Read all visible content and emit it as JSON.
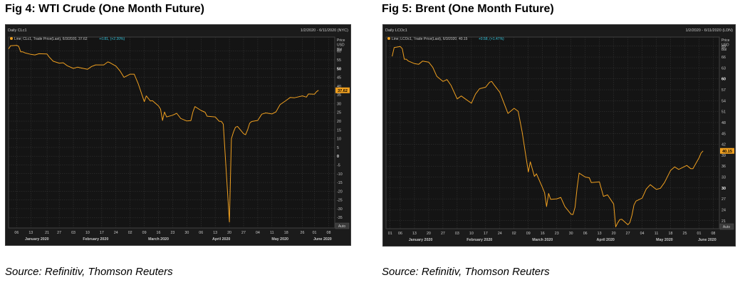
{
  "colors": {
    "background": "#1b1b1b",
    "plot_bg": "#141414",
    "grid": "#3a3a3a",
    "line": "#f0a020",
    "text": "#c8c8c8",
    "cyan": "#36c8e0",
    "badge": "#f0a020"
  },
  "chart_data": [
    {
      "type": "line",
      "title": "Fig 4: WTI Crude (One Month Future)",
      "source": "Source: Refinitiv, Thomson Reuters",
      "panel_label": "Daily CLc1",
      "date_range": "1/2/2020 - 6/11/2020 (NYC)",
      "legend": "Line; CLc1, Trade Price(Last), 6/3/2020, 37.62",
      "legend_change": "+0.81, (+2.20%)",
      "axis_title": [
        "Price",
        "USD",
        "Bbl"
      ],
      "last_value_label": "37.62",
      "auto_label": "Auto",
      "ylim": [
        -41,
        68
      ],
      "y_ticks": [
        -35,
        -30,
        -25,
        -20,
        -15,
        -10,
        -5,
        0,
        5,
        10,
        15,
        20,
        25,
        30,
        35,
        40,
        45,
        50,
        55,
        60
      ],
      "y_tick_labels": [
        "-35",
        "-30",
        "-25",
        "-20",
        "-15",
        "-10",
        "-5",
        "0",
        "5",
        "10",
        "15",
        "20",
        "25",
        "30",
        "35",
        "40",
        "45",
        "50",
        "55",
        "60"
      ],
      "bold_y_ticks": [
        0,
        50
      ],
      "day_ticks": [
        {
          "label": "06",
          "x": "2020-01-06"
        },
        {
          "label": "13",
          "x": "2020-01-13"
        },
        {
          "label": "21",
          "x": "2020-01-21"
        },
        {
          "label": "27",
          "x": "2020-01-27"
        },
        {
          "label": "03",
          "x": "2020-02-03"
        },
        {
          "label": "10",
          "x": "2020-02-10"
        },
        {
          "label": "17",
          "x": "2020-02-17"
        },
        {
          "label": "24",
          "x": "2020-02-24"
        },
        {
          "label": "02",
          "x": "2020-03-02"
        },
        {
          "label": "09",
          "x": "2020-03-09"
        },
        {
          "label": "16",
          "x": "2020-03-16"
        },
        {
          "label": "23",
          "x": "2020-03-23"
        },
        {
          "label": "30",
          "x": "2020-03-30"
        },
        {
          "label": "06",
          "x": "2020-04-06"
        },
        {
          "label": "13",
          "x": "2020-04-13"
        },
        {
          "label": "20",
          "x": "2020-04-20"
        },
        {
          "label": "27",
          "x": "2020-04-27"
        },
        {
          "label": "04",
          "x": "2020-05-04"
        },
        {
          "label": "11",
          "x": "2020-05-11"
        },
        {
          "label": "18",
          "x": "2020-05-18"
        },
        {
          "label": "26",
          "x": "2020-05-26"
        },
        {
          "label": "01",
          "x": "2020-06-01"
        },
        {
          "label": "08",
          "x": "2020-06-08"
        }
      ],
      "month_labels": [
        {
          "label": "January 2020",
          "x": "2020-01-16"
        },
        {
          "label": "February 2020",
          "x": "2020-02-14"
        },
        {
          "label": "March 2020",
          "x": "2020-03-16"
        },
        {
          "label": "April 2020",
          "x": "2020-04-16"
        },
        {
          "label": "May 2020",
          "x": "2020-05-15"
        },
        {
          "label": "June 2020",
          "x": "2020-06-05"
        }
      ],
      "x_start": "2020-01-02",
      "x_end": "2020-06-11",
      "series": [
        {
          "x": [
            "2020-01-02",
            "2020-01-03",
            "2020-01-06",
            "2020-01-07",
            "2020-01-08",
            "2020-01-09",
            "2020-01-10",
            "2020-01-13",
            "2020-01-15",
            "2020-01-17",
            "2020-01-21",
            "2020-01-22",
            "2020-01-24",
            "2020-01-27",
            "2020-01-29",
            "2020-01-31",
            "2020-02-03",
            "2020-02-05",
            "2020-02-07",
            "2020-02-10",
            "2020-02-12",
            "2020-02-14",
            "2020-02-18",
            "2020-02-20",
            "2020-02-21",
            "2020-02-24",
            "2020-02-26",
            "2020-02-28",
            "2020-03-02",
            "2020-03-04",
            "2020-03-06",
            "2020-03-09",
            "2020-03-10",
            "2020-03-12",
            "2020-03-13",
            "2020-03-16",
            "2020-03-17",
            "2020-03-18",
            "2020-03-19",
            "2020-03-20",
            "2020-03-23",
            "2020-03-25",
            "2020-03-27",
            "2020-03-30",
            "2020-04-01",
            "2020-04-02",
            "2020-04-03",
            "2020-04-06",
            "2020-04-08",
            "2020-04-09",
            "2020-04-13",
            "2020-04-15",
            "2020-04-16",
            "2020-04-17",
            "2020-04-20",
            "2020-04-21",
            "2020-04-22",
            "2020-04-23",
            "2020-04-24",
            "2020-04-27",
            "2020-04-28",
            "2020-04-29",
            "2020-04-30",
            "2020-05-01",
            "2020-05-04",
            "2020-05-06",
            "2020-05-08",
            "2020-05-11",
            "2020-05-13",
            "2020-05-15",
            "2020-05-18",
            "2020-05-20",
            "2020-05-22",
            "2020-05-26",
            "2020-05-28",
            "2020-05-29",
            "2020-06-01",
            "2020-06-02",
            "2020-06-03"
          ],
          "y": [
            61.2,
            63.0,
            63.3,
            62.7,
            59.6,
            59.6,
            59.0,
            58.1,
            57.8,
            58.5,
            58.3,
            56.7,
            54.2,
            53.1,
            53.3,
            51.6,
            50.1,
            50.8,
            50.3,
            49.6,
            51.2,
            52.1,
            52.1,
            53.8,
            53.4,
            51.4,
            48.7,
            45.0,
            46.8,
            46.8,
            41.3,
            31.1,
            34.4,
            31.5,
            31.7,
            28.7,
            26.9,
            20.4,
            25.2,
            22.4,
            23.4,
            24.5,
            21.5,
            20.1,
            20.3,
            25.3,
            28.3,
            26.1,
            25.1,
            22.8,
            22.4,
            19.9,
            19.9,
            18.3,
            -37.6,
            10.0,
            13.8,
            16.5,
            17.0,
            12.8,
            12.3,
            15.1,
            18.8,
            19.8,
            20.4,
            24.0,
            24.7,
            24.1,
            25.3,
            29.4,
            31.8,
            33.5,
            33.3,
            34.4,
            33.7,
            35.5,
            35.4,
            36.8,
            37.6
          ]
        }
      ]
    },
    {
      "type": "line",
      "title": "Fig 5: Brent (One Month Future)",
      "source": "Source: Refinitiv, Thomson Reuters",
      "panel_label": "Daily LCOc1",
      "date_range": "1/2/2020 - 6/11/2020 (LDN)",
      "legend": "Line; LCOc1, Trade Price(Last), 6/3/2020, 40.15",
      "legend_change": "+0.58, (+1.47%)",
      "axis_title": [
        "Price",
        "USD",
        "Bbl"
      ],
      "last_value_label": "40.15",
      "auto_label": "Auto",
      "ylim": [
        18.8,
        71.5
      ],
      "y_ticks": [
        21,
        24,
        27,
        30,
        33,
        36,
        39,
        42,
        45,
        48,
        51,
        54,
        57,
        60,
        63,
        66,
        69
      ],
      "y_tick_labels": [
        "21",
        "24",
        "27",
        "30",
        "33",
        "36",
        "39",
        "42",
        "45",
        "48",
        "51",
        "54",
        "57",
        "60",
        "63",
        "66",
        "69"
      ],
      "bold_y_ticks": [
        30,
        60
      ],
      "day_ticks": [
        {
          "label": "01",
          "x": "2020-01-01"
        },
        {
          "label": "06",
          "x": "2020-01-06"
        },
        {
          "label": "13",
          "x": "2020-01-13"
        },
        {
          "label": "20",
          "x": "2020-01-20"
        },
        {
          "label": "27",
          "x": "2020-01-27"
        },
        {
          "label": "03",
          "x": "2020-02-03"
        },
        {
          "label": "10",
          "x": "2020-02-10"
        },
        {
          "label": "17",
          "x": "2020-02-17"
        },
        {
          "label": "24",
          "x": "2020-02-24"
        },
        {
          "label": "02",
          "x": "2020-03-02"
        },
        {
          "label": "09",
          "x": "2020-03-09"
        },
        {
          "label": "16",
          "x": "2020-03-16"
        },
        {
          "label": "23",
          "x": "2020-03-23"
        },
        {
          "label": "30",
          "x": "2020-03-30"
        },
        {
          "label": "06",
          "x": "2020-04-06"
        },
        {
          "label": "13",
          "x": "2020-04-13"
        },
        {
          "label": "20",
          "x": "2020-04-20"
        },
        {
          "label": "27",
          "x": "2020-04-27"
        },
        {
          "label": "04",
          "x": "2020-05-04"
        },
        {
          "label": "11",
          "x": "2020-05-11"
        },
        {
          "label": "18",
          "x": "2020-05-18"
        },
        {
          "label": "25",
          "x": "2020-05-25"
        },
        {
          "label": "01",
          "x": "2020-06-01"
        },
        {
          "label": "08",
          "x": "2020-06-08"
        }
      ],
      "month_labels": [
        {
          "label": "January 2020",
          "x": "2020-01-16"
        },
        {
          "label": "February 2020",
          "x": "2020-02-14"
        },
        {
          "label": "March 2020",
          "x": "2020-03-16"
        },
        {
          "label": "April 2020",
          "x": "2020-04-16"
        },
        {
          "label": "May 2020",
          "x": "2020-05-15"
        },
        {
          "label": "June 2020",
          "x": "2020-06-05"
        }
      ],
      "x_start": "2019-12-30",
      "x_end": "2020-06-11",
      "series": [
        {
          "x": [
            "2020-01-02",
            "2020-01-03",
            "2020-01-06",
            "2020-01-07",
            "2020-01-08",
            "2020-01-09",
            "2020-01-10",
            "2020-01-13",
            "2020-01-15",
            "2020-01-17",
            "2020-01-20",
            "2020-01-22",
            "2020-01-24",
            "2020-01-27",
            "2020-01-29",
            "2020-01-31",
            "2020-02-03",
            "2020-02-05",
            "2020-02-07",
            "2020-02-10",
            "2020-02-12",
            "2020-02-14",
            "2020-02-17",
            "2020-02-19",
            "2020-02-20",
            "2020-02-21",
            "2020-02-24",
            "2020-02-26",
            "2020-02-28",
            "2020-03-02",
            "2020-03-04",
            "2020-03-06",
            "2020-03-09",
            "2020-03-10",
            "2020-03-12",
            "2020-03-13",
            "2020-03-16",
            "2020-03-17",
            "2020-03-18",
            "2020-03-19",
            "2020-03-20",
            "2020-03-23",
            "2020-03-25",
            "2020-03-27",
            "2020-03-30",
            "2020-03-31",
            "2020-04-01",
            "2020-04-02",
            "2020-04-03",
            "2020-04-06",
            "2020-04-08",
            "2020-04-09",
            "2020-04-13",
            "2020-04-15",
            "2020-04-17",
            "2020-04-20",
            "2020-04-21",
            "2020-04-22",
            "2020-04-23",
            "2020-04-24",
            "2020-04-27",
            "2020-04-28",
            "2020-04-29",
            "2020-04-30",
            "2020-05-01",
            "2020-05-04",
            "2020-05-06",
            "2020-05-08",
            "2020-05-11",
            "2020-05-13",
            "2020-05-15",
            "2020-05-18",
            "2020-05-20",
            "2020-05-22",
            "2020-05-26",
            "2020-05-28",
            "2020-05-29",
            "2020-06-01",
            "2020-06-02",
            "2020-06-03"
          ],
          "y": [
            66.2,
            68.6,
            68.9,
            68.3,
            65.4,
            65.4,
            64.9,
            64.2,
            64.0,
            64.9,
            64.6,
            63.2,
            60.7,
            59.3,
            59.8,
            58.2,
            54.5,
            55.3,
            54.5,
            53.3,
            55.8,
            57.3,
            57.7,
            59.1,
            59.3,
            58.5,
            56.3,
            53.4,
            50.5,
            51.9,
            51.1,
            45.3,
            34.4,
            37.2,
            33.2,
            33.9,
            30.1,
            28.7,
            24.9,
            28.5,
            26.9,
            27.0,
            27.4,
            24.9,
            22.8,
            22.7,
            24.7,
            29.9,
            34.1,
            33.0,
            32.8,
            31.5,
            31.7,
            27.7,
            28.1,
            25.6,
            19.3,
            20.4,
            21.3,
            21.4,
            19.9,
            20.5,
            22.5,
            25.3,
            26.4,
            27.2,
            29.7,
            30.9,
            29.6,
            29.9,
            31.5,
            34.8,
            35.8,
            35.1,
            36.2,
            35.3,
            35.3,
            38.3,
            39.6,
            40.2
          ]
        }
      ]
    }
  ]
}
